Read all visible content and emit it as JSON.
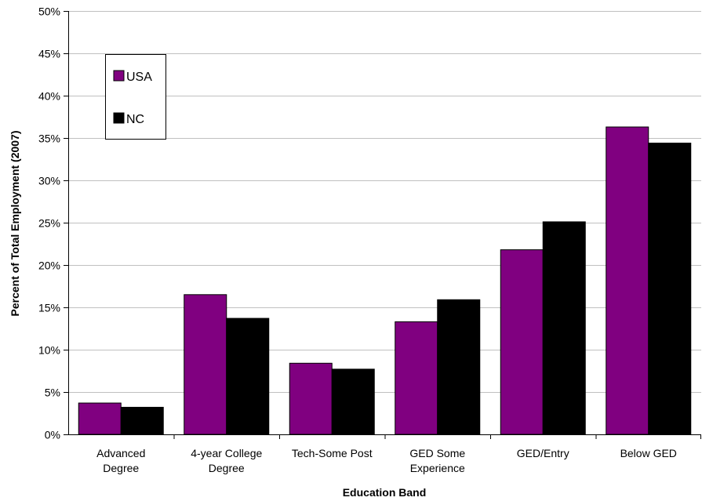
{
  "chart_data": {
    "type": "bar",
    "categories": [
      [
        "Advanced",
        "Degree"
      ],
      [
        "4-year College",
        "Degree"
      ],
      [
        "Tech-Some Post"
      ],
      [
        "GED Some",
        "Experience"
      ],
      [
        "GED/Entry"
      ],
      [
        "Below GED"
      ]
    ],
    "series": [
      {
        "name": "USA",
        "color": "#800080",
        "values": [
          3.7,
          16.5,
          8.4,
          13.3,
          21.8,
          36.3
        ]
      },
      {
        "name": "NC",
        "color": "#000000",
        "values": [
          3.2,
          13.7,
          7.7,
          15.9,
          25.1,
          34.4
        ]
      }
    ],
    "xlabel": "Education Band",
    "ylabel": "Percent of Total Employment (2007)",
    "ylim": [
      0,
      50
    ],
    "yticks": [
      "0%",
      "5%",
      "10%",
      "15%",
      "20%",
      "25%",
      "30%",
      "35%",
      "40%",
      "45%",
      "50%"
    ],
    "grid": true,
    "legend_position": "top-left"
  }
}
